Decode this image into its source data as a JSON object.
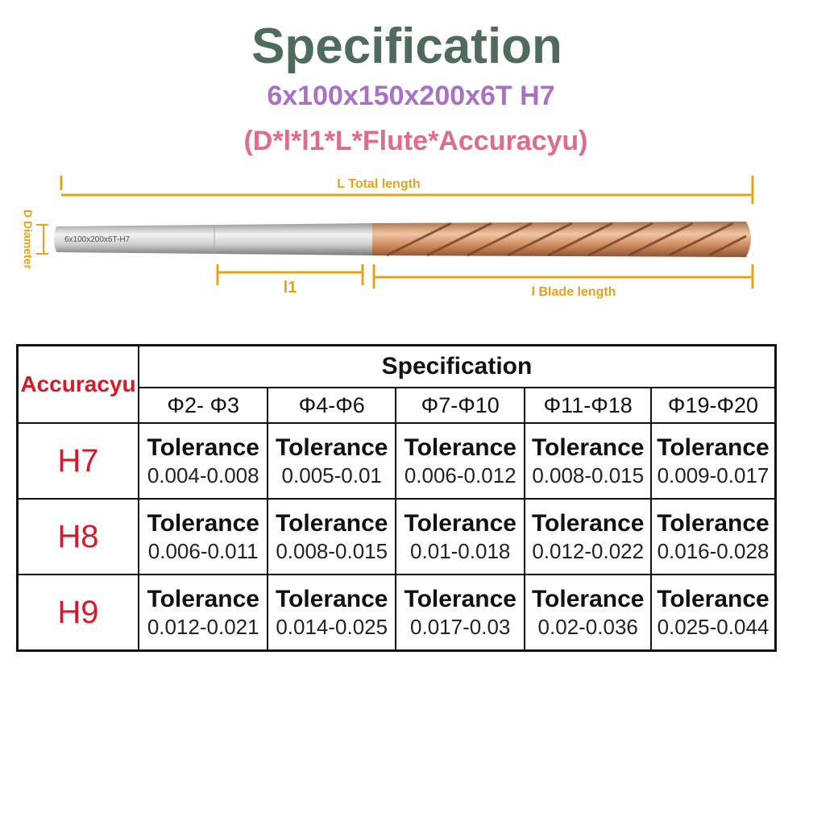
{
  "header": {
    "title": "Specification",
    "model": "6x100x150x200x6T H7",
    "formula": "(D*l*l1*L*Flute*Accuracyu)"
  },
  "diagram": {
    "total_length_label": "L Total length",
    "diameter_label": "D Diameter",
    "shank_length_label": "l1",
    "blade_length_label": "l  Blade length",
    "shank_marking": "6x100x200x6T-H7",
    "colors": {
      "dimension": "#e3a31c",
      "coating": "#c9865a",
      "shank": "#c7c7c7"
    }
  },
  "table": {
    "accuracy_header": "Accuracyu",
    "spec_header": "Specification",
    "ranges": [
      "Φ2- Φ3",
      "Φ4-Φ6",
      "Φ7-Φ10",
      "Φ11-Φ18",
      "Φ19-Φ20"
    ],
    "rows": [
      {
        "grade": "H7",
        "cells": [
          {
            "label": "Tolerance",
            "value": "0.004-0.008"
          },
          {
            "label": "Tolerance",
            "value": "0.005-0.01"
          },
          {
            "label": "Tolerance",
            "value": "0.006-0.012"
          },
          {
            "label": "Tolerance",
            "value": "0.008-0.015"
          },
          {
            "label": "Tolerance",
            "value": "0.009-0.017"
          }
        ]
      },
      {
        "grade": "H8",
        "cells": [
          {
            "label": "Tolerance",
            "value": "0.006-0.011"
          },
          {
            "label": "Tolerance",
            "value": "0.008-0.015"
          },
          {
            "label": "Tolerance",
            "value": "0.01-0.018"
          },
          {
            "label": "Tolerance",
            "value": "0.012-0.022"
          },
          {
            "label": "Tolerance",
            "value": "0.016-0.028"
          }
        ]
      },
      {
        "grade": "H9",
        "cells": [
          {
            "label": "Tolerance",
            "value": "0.012-0.021"
          },
          {
            "label": "Tolerance",
            "value": "0.014-0.025"
          },
          {
            "label": "Tolerance",
            "value": "0.017-0.03"
          },
          {
            "label": "Tolerance",
            "value": "0.02-0.036"
          },
          {
            "label": "Tolerance",
            "value": "0.025-0.044"
          }
        ]
      }
    ]
  }
}
